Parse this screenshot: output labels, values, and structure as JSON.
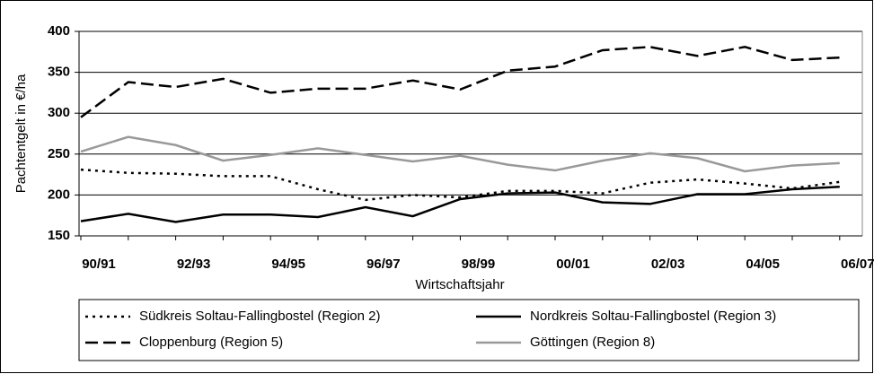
{
  "chart_data": {
    "type": "line",
    "y_label": "Pachtentgelt in €/ha",
    "x_label": "Wirtschaftsjahr",
    "categories": [
      "90/91",
      null,
      "92/93",
      null,
      "94/95",
      null,
      "96/97",
      null,
      "98/99",
      null,
      "00/01",
      null,
      "02/03",
      null,
      "04/05",
      null,
      "06/07"
    ],
    "ylim": [
      150,
      400
    ],
    "yticks": [
      150,
      200,
      250,
      300,
      350,
      400
    ],
    "grid": true,
    "legend": "bottom",
    "series": [
      {
        "name": "Südkreis Soltau-Fallingbostel (Region 2)",
        "color": "#000000",
        "style": "dotted",
        "values": [
          231,
          227,
          226,
          223,
          223,
          207,
          194,
          200,
          197,
          205,
          205,
          202,
          215,
          219,
          214,
          208,
          216
        ]
      },
      {
        "name": "Nordkreis Soltau-Fallingbostel (Region 3)",
        "color": "#000000",
        "style": "solid",
        "values": [
          168,
          177,
          167,
          176,
          176,
          173,
          185,
          174,
          195,
          202,
          203,
          191,
          189,
          201,
          201,
          207,
          210
        ]
      },
      {
        "name": "Cloppenburg (Region 5)",
        "color": "#000000",
        "style": "dashed",
        "values": [
          295,
          338,
          332,
          342,
          325,
          330,
          330,
          340,
          329,
          352,
          357,
          377,
          381,
          370,
          381,
          365,
          368
        ]
      },
      {
        "name": "Göttingen (Region 8)",
        "color": "#999999",
        "style": "solid",
        "values": [
          253,
          271,
          261,
          242,
          249,
          257,
          249,
          241,
          248,
          237,
          230,
          242,
          251,
          245,
          229,
          236,
          239
        ]
      }
    ]
  }
}
